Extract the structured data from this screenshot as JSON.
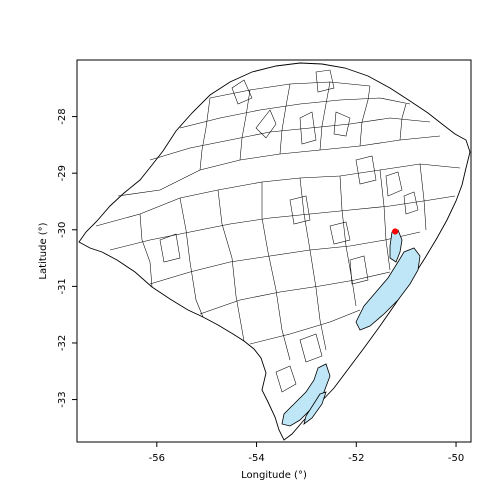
{
  "map": {
    "xlabel": "Longitude (°)",
    "ylabel": "Latitude (°)",
    "xticks": [
      {
        "value": -56,
        "label": "-56"
      },
      {
        "value": -54,
        "label": "-54"
      },
      {
        "value": -52,
        "label": "-52"
      },
      {
        "value": -50,
        "label": "-50"
      }
    ],
    "yticks": [
      {
        "value": -28,
        "label": "-28"
      },
      {
        "value": -29,
        "label": "-29"
      },
      {
        "value": -30,
        "label": "-30"
      },
      {
        "value": -31,
        "label": "-31"
      },
      {
        "value": -32,
        "label": "-32"
      },
      {
        "value": -33,
        "label": "-33"
      }
    ],
    "xlim": [
      -57.6,
      -49.7
    ],
    "ylim": [
      -33.75,
      -27.0
    ],
    "colors": {
      "water": "#bfe6f6",
      "land": "#ffffff",
      "borders": "#000000",
      "marker": "#ff0000"
    },
    "marker": {
      "lon": -51.22,
      "lat": -30.03,
      "shape": "red-dot"
    }
  }
}
